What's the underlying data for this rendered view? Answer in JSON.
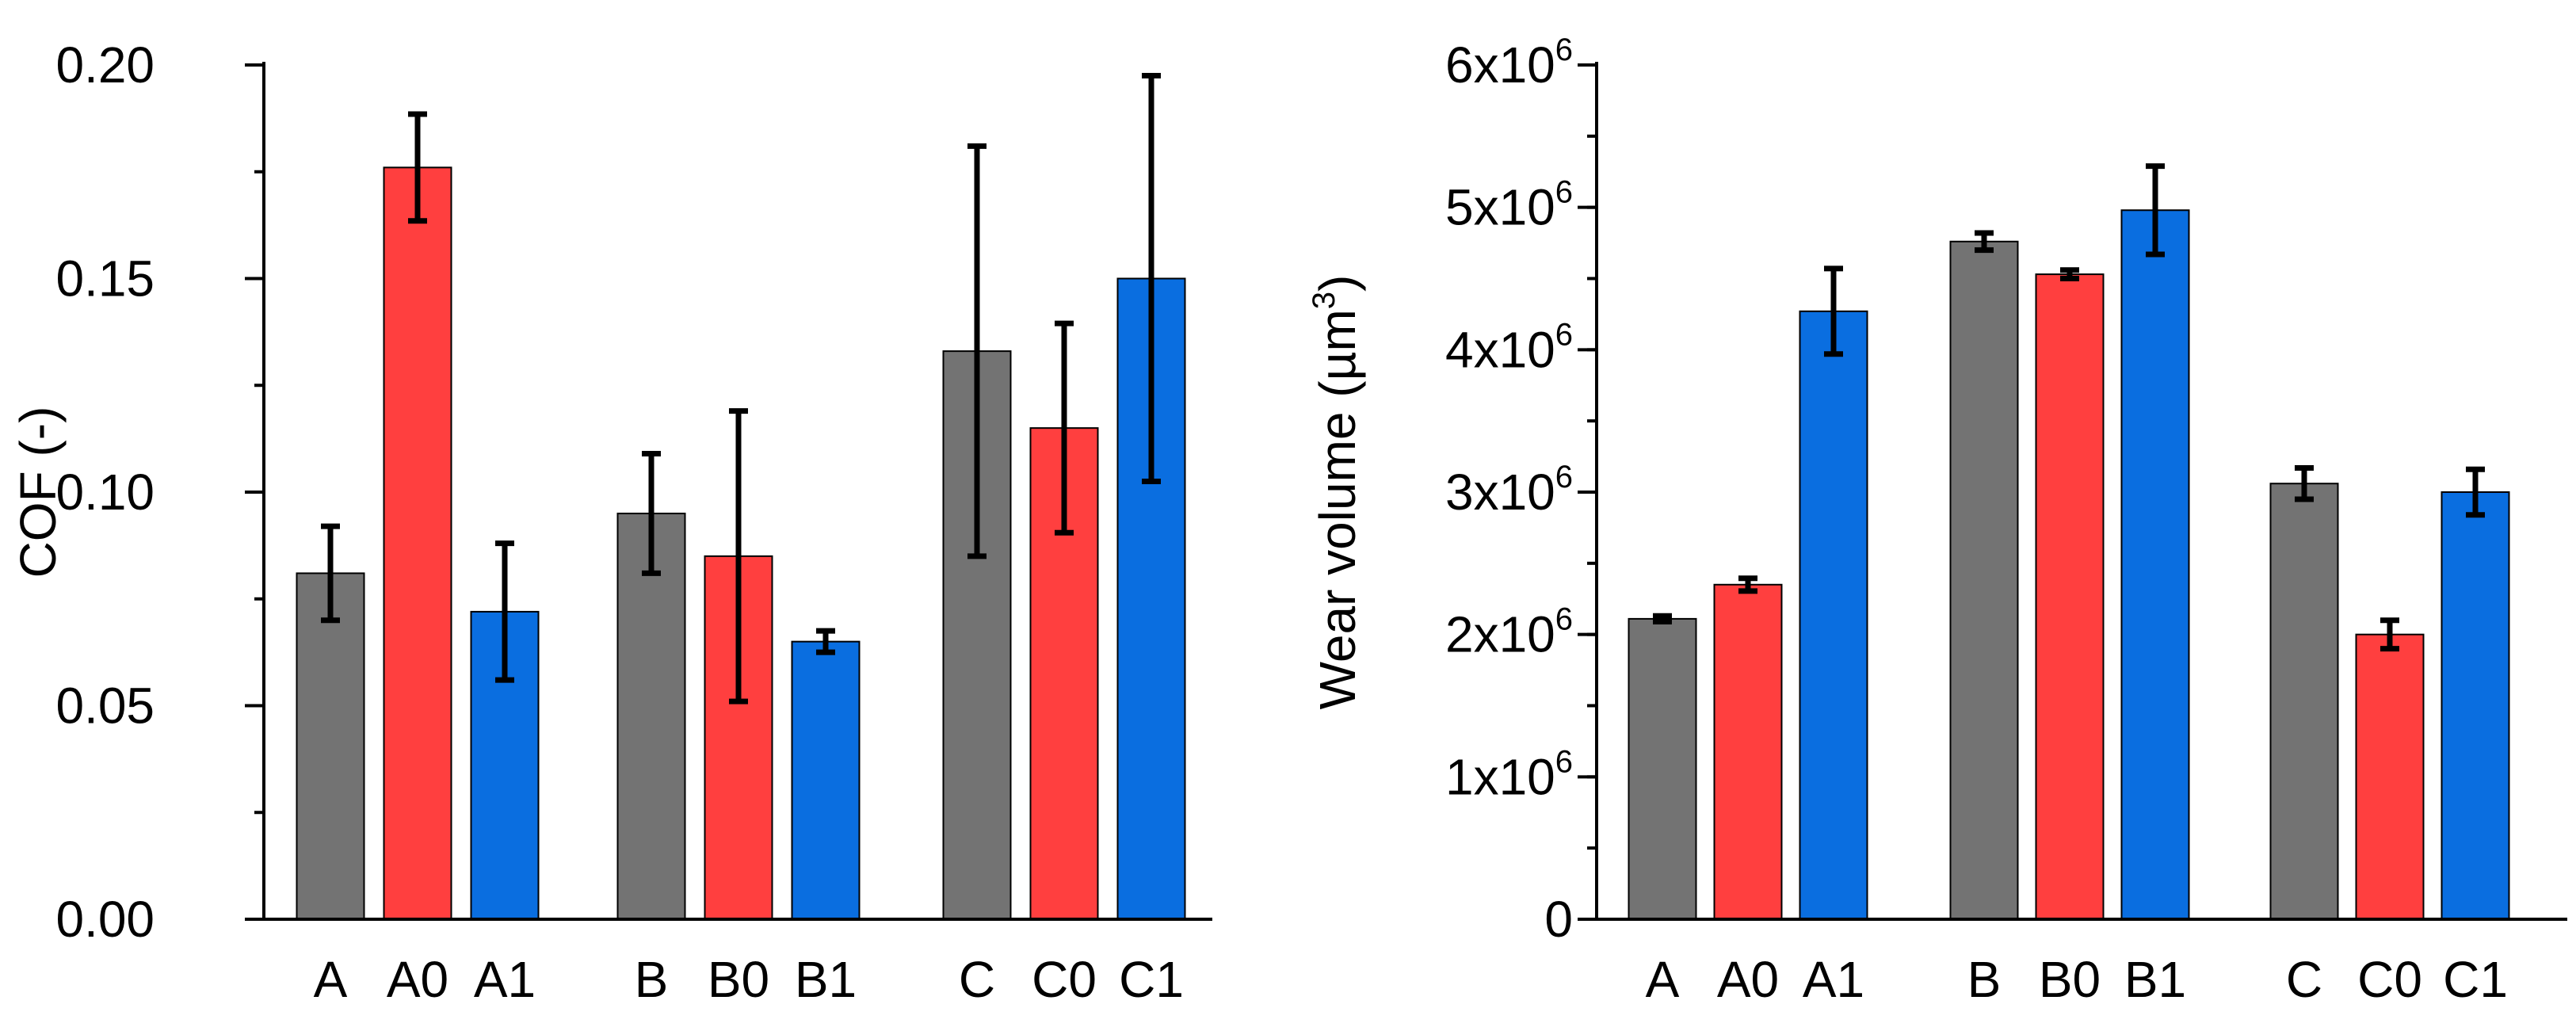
{
  "colors": {
    "gray": "#737373",
    "red": "#ff3f3f",
    "blue": "#0a6ee0",
    "axis": "#000000"
  },
  "chart_data": [
    {
      "type": "bar",
      "title": "",
      "xlabel": "",
      "ylabel": "COF (-)",
      "ylim": [
        0,
        0.2
      ],
      "yticks": [
        {
          "value": 0.0,
          "label": "0.00"
        },
        {
          "value": 0.05,
          "label": "0.05"
        },
        {
          "value": 0.1,
          "label": "0.10"
        },
        {
          "value": 0.15,
          "label": "0.15"
        },
        {
          "value": 0.2,
          "label": "0.20"
        }
      ],
      "minor_step": 0.025,
      "categories": [
        "A",
        "A0",
        "A1",
        "B",
        "B0",
        "B1",
        "C",
        "C0",
        "C1"
      ],
      "values": [
        0.081,
        0.176,
        0.072,
        0.095,
        0.085,
        0.065,
        0.133,
        0.115,
        0.15
      ],
      "errors": [
        0.011,
        0.0125,
        0.016,
        0.014,
        0.034,
        0.0025,
        0.048,
        0.0245,
        0.0475
      ],
      "color_keys": [
        "gray",
        "red",
        "blue",
        "gray",
        "red",
        "blue",
        "gray",
        "red",
        "blue"
      ]
    },
    {
      "type": "bar",
      "title": "",
      "xlabel": "",
      "ylabel_main": "Wear volume (µm",
      "ylabel_sup": "3",
      "ylabel_end": ")",
      "ylim": [
        0,
        6000000
      ],
      "yticks": [
        {
          "value": 0,
          "label": "0",
          "sup": ""
        },
        {
          "value": 1000000,
          "label": "1x10",
          "sup": "6"
        },
        {
          "value": 2000000,
          "label": "2x10",
          "sup": "6"
        },
        {
          "value": 3000000,
          "label": "3x10",
          "sup": "6"
        },
        {
          "value": 4000000,
          "label": "4x10",
          "sup": "6"
        },
        {
          "value": 5000000,
          "label": "5x10",
          "sup": "6"
        },
        {
          "value": 6000000,
          "label": "6x10",
          "sup": "6"
        }
      ],
      "minor_step": 500000,
      "categories": [
        "A",
        "A0",
        "A1",
        "B",
        "B0",
        "B1",
        "C",
        "C0",
        "C1"
      ],
      "values": [
        2110000,
        2350000,
        4270000,
        4760000,
        4530000,
        4980000,
        3060000,
        2000000,
        3000000
      ],
      "errors": [
        20000,
        45000,
        300000,
        60000,
        30000,
        310000,
        110000,
        100000,
        160000
      ],
      "color_keys": [
        "gray",
        "red",
        "blue",
        "gray",
        "red",
        "blue",
        "gray",
        "red",
        "blue"
      ]
    }
  ]
}
